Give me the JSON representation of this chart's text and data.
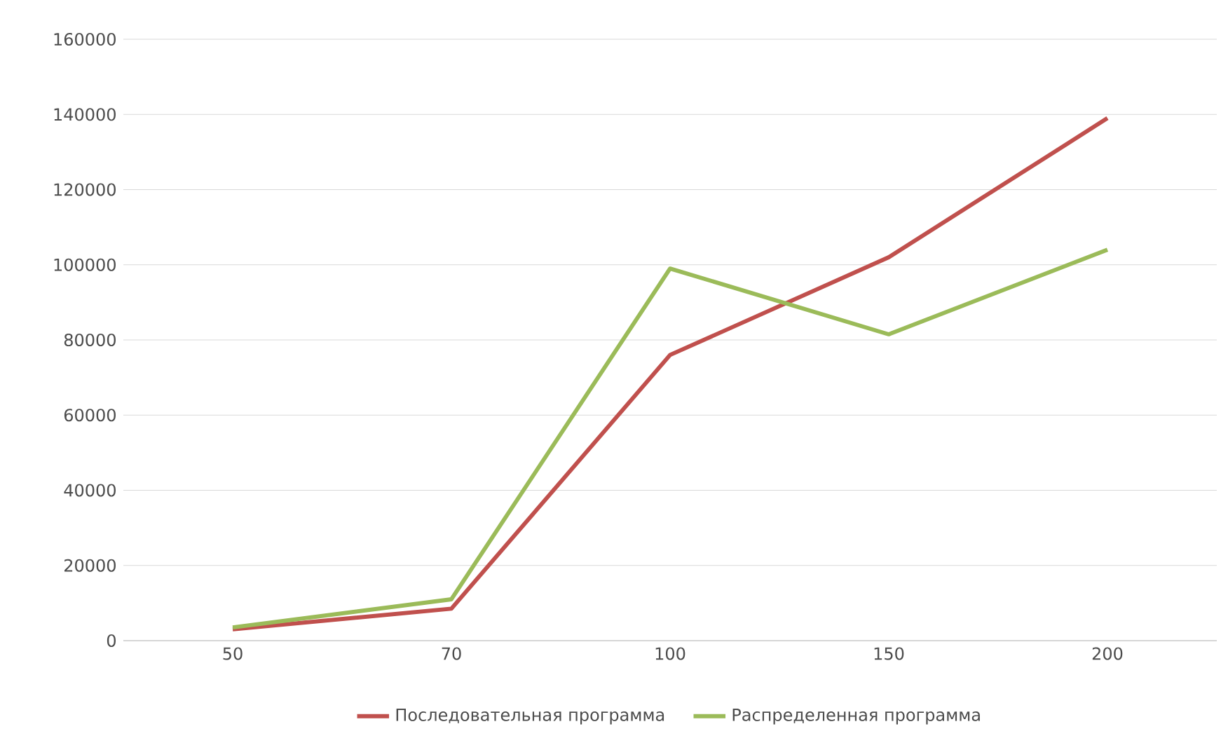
{
  "chart_data": {
    "type": "line",
    "categories": [
      "50",
      "70",
      "100",
      "150",
      "200"
    ],
    "series": [
      {
        "name": "Последовательная программа",
        "color": "#c0504d",
        "values": [
          3000,
          8500,
          76000,
          102000,
          139000
        ]
      },
      {
        "name": "Распределенная программа",
        "color": "#9bbb59",
        "values": [
          3500,
          11000,
          99000,
          81500,
          104000
        ]
      }
    ],
    "ylim": [
      0,
      160000
    ],
    "yticks": [
      0,
      20000,
      40000,
      60000,
      80000,
      100000,
      120000,
      140000,
      160000
    ],
    "grid": "y",
    "legend": "bottom",
    "marker": "none",
    "line_style": "solid"
  }
}
